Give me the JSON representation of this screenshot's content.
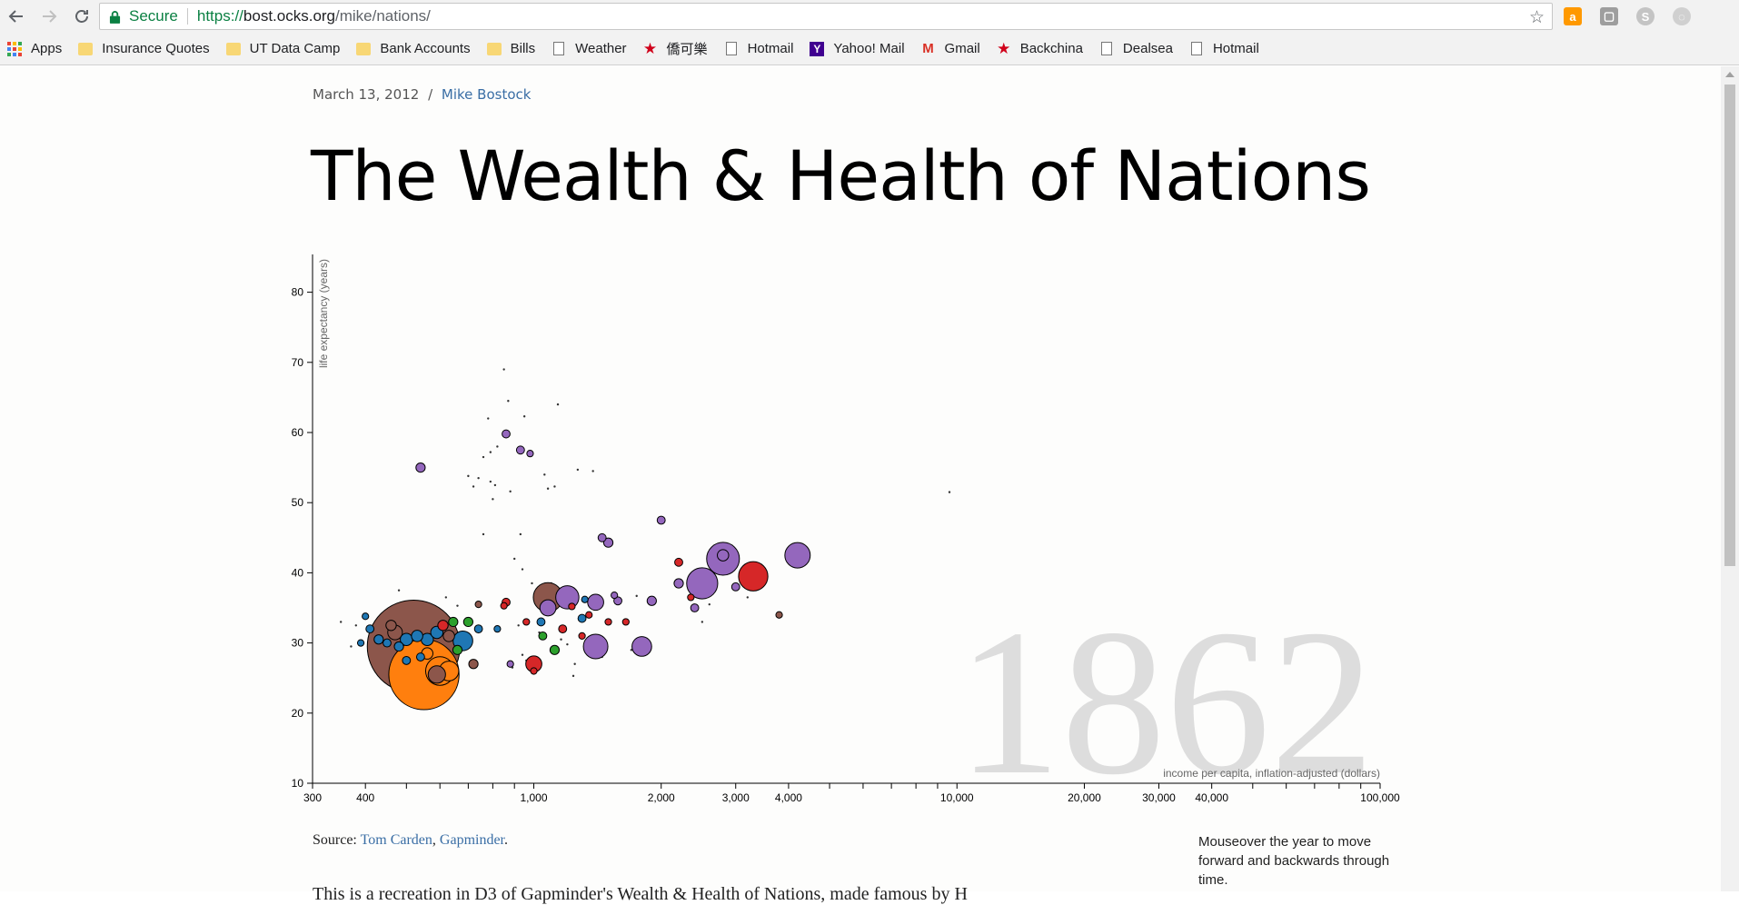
{
  "browser": {
    "secure_label": "Secure",
    "url_scheme": "https://",
    "url_host": "bost.ocks.org",
    "url_path": "/mike/nations/"
  },
  "bookmarks": [
    {
      "label": "Apps",
      "icon": "apps-grid-icon"
    },
    {
      "label": "Insurance Quotes",
      "icon": "folder-icon"
    },
    {
      "label": "UT Data Camp",
      "icon": "folder-icon"
    },
    {
      "label": "Bank Accounts",
      "icon": "folder-icon"
    },
    {
      "label": "Bills",
      "icon": "folder-icon"
    },
    {
      "label": "Weather",
      "icon": "page-icon"
    },
    {
      "label": "僑可樂",
      "icon": "red-star-icon"
    },
    {
      "label": "Hotmail",
      "icon": "page-icon"
    },
    {
      "label": "Yahoo! Mail",
      "icon": "yahoo-icon"
    },
    {
      "label": "Gmail",
      "icon": "gmail-icon"
    },
    {
      "label": "Backchina",
      "icon": "red-star-icon"
    },
    {
      "label": "Dealsea",
      "icon": "page-icon"
    },
    {
      "label": "Hotmail",
      "icon": "page-icon"
    }
  ],
  "article": {
    "date": "March 13, 2012",
    "separator": "/",
    "author": "Mike Bostock",
    "title": "The Wealth & Health of Nations",
    "source_prefix": "Source:",
    "source_link1": "Tom Carden",
    "source_comma": ",",
    "source_link2": "Gapminder",
    "source_end": ".",
    "hint": "Mouseover the year to move forward and backwards through time.",
    "body_text_cut": "This is a recreation in D3 of Gapminder's Wealth & Health of Nations, made famous by H"
  },
  "colors": {
    "sub_saharan_africa": "#1f77b4",
    "south_asia": "#ff7f0e",
    "middle_east_north_africa": "#2ca02c",
    "america": "#d62728",
    "europe_central_asia": "#9467bd",
    "east_asia_pacific": "#8c564b",
    "year_label": "#dddddd",
    "link": "#3a6ea5"
  },
  "chart_data": {
    "type": "scatter",
    "year": "1862",
    "xlabel": "income per capita, inflation-adjusted (dollars)",
    "ylabel": "life expectancy (years)",
    "xscale": "log",
    "xlim": [
      300,
      100000
    ],
    "ylim": [
      10,
      85
    ],
    "xticks": [
      300,
      400,
      1000,
      2000,
      3000,
      4000,
      10000,
      20000,
      30000,
      40000,
      100000
    ],
    "xtick_labels": [
      "300",
      "400",
      "1,000",
      "2,000",
      "3,000",
      "4,000",
      "10,000",
      "20,000",
      "30,000",
      "40,000",
      "100,000"
    ],
    "yticks": [
      10,
      20,
      30,
      40,
      50,
      60,
      70,
      80
    ],
    "legend": "none",
    "points": [
      {
        "x": 520,
        "y": 29.5,
        "pop": 400,
        "region": "east_asia_pacific"
      },
      {
        "x": 550,
        "y": 25.5,
        "pop": 230,
        "region": "south_asia"
      },
      {
        "x": 600,
        "y": 26,
        "pop": 38,
        "region": "south_asia"
      },
      {
        "x": 630,
        "y": 26,
        "pop": 18,
        "region": "south_asia"
      },
      {
        "x": 590,
        "y": 25.5,
        "pop": 14,
        "region": "east_asia_pacific"
      },
      {
        "x": 680,
        "y": 30.3,
        "pop": 18,
        "region": "sub_saharan_africa"
      },
      {
        "x": 1080,
        "y": 36.5,
        "pop": 40,
        "region": "east_asia_pacific"
      },
      {
        "x": 1200,
        "y": 36.5,
        "pop": 25,
        "region": "europe_central_asia"
      },
      {
        "x": 1080,
        "y": 35,
        "pop": 12,
        "region": "europe_central_asia"
      },
      {
        "x": 1400,
        "y": 35.8,
        "pop": 12,
        "region": "europe_central_asia"
      },
      {
        "x": 1400,
        "y": 29.5,
        "pop": 28,
        "region": "europe_central_asia"
      },
      {
        "x": 1800,
        "y": 29.5,
        "pop": 18,
        "region": "europe_central_asia"
      },
      {
        "x": 2500,
        "y": 38.5,
        "pop": 45,
        "region": "europe_central_asia"
      },
      {
        "x": 2800,
        "y": 42,
        "pop": 50,
        "region": "europe_central_asia"
      },
      {
        "x": 3300,
        "y": 39.5,
        "pop": 40,
        "region": "america"
      },
      {
        "x": 4200,
        "y": 42.5,
        "pop": 30,
        "region": "europe_central_asia"
      },
      {
        "x": 2800,
        "y": 42.5,
        "pop": 6,
        "region": "europe_central_asia"
      },
      {
        "x": 1000,
        "y": 27,
        "pop": 12,
        "region": "america"
      },
      {
        "x": 1000,
        "y": 26,
        "pop": 2,
        "region": "america"
      },
      {
        "x": 560,
        "y": 28.5,
        "pop": 6,
        "region": "south_asia"
      },
      {
        "x": 470,
        "y": 31.5,
        "pop": 10,
        "region": "east_asia_pacific"
      },
      {
        "x": 500,
        "y": 30.5,
        "pop": 7,
        "region": "sub_saharan_africa"
      },
      {
        "x": 530,
        "y": 31,
        "pop": 6,
        "region": "sub_saharan_africa"
      },
      {
        "x": 560,
        "y": 30.5,
        "pop": 7,
        "region": "sub_saharan_africa"
      },
      {
        "x": 590,
        "y": 31.5,
        "pop": 7,
        "region": "sub_saharan_africa"
      },
      {
        "x": 610,
        "y": 32.5,
        "pop": 5,
        "region": "america"
      },
      {
        "x": 630,
        "y": 31,
        "pop": 6,
        "region": "east_asia_pacific"
      },
      {
        "x": 645,
        "y": 33,
        "pop": 4,
        "region": "middle_east_north_africa"
      },
      {
        "x": 660,
        "y": 29,
        "pop": 4,
        "region": "middle_east_north_africa"
      },
      {
        "x": 430,
        "y": 30.5,
        "pop": 4,
        "region": "sub_saharan_africa"
      },
      {
        "x": 410,
        "y": 32,
        "pop": 3,
        "region": "sub_saharan_africa"
      },
      {
        "x": 400,
        "y": 33.8,
        "pop": 2,
        "region": "sub_saharan_africa"
      },
      {
        "x": 390,
        "y": 30,
        "pop": 2,
        "region": "sub_saharan_africa"
      },
      {
        "x": 460,
        "y": 32.5,
        "pop": 5,
        "region": "east_asia_pacific"
      },
      {
        "x": 480,
        "y": 29.5,
        "pop": 4,
        "region": "sub_saharan_africa"
      },
      {
        "x": 450,
        "y": 30,
        "pop": 3,
        "region": "sub_saharan_africa"
      },
      {
        "x": 500,
        "y": 27.5,
        "pop": 3,
        "region": "sub_saharan_africa"
      },
      {
        "x": 540,
        "y": 28,
        "pop": 3,
        "region": "sub_saharan_africa"
      },
      {
        "x": 720,
        "y": 27,
        "pop": 4,
        "region": "east_asia_pacific"
      },
      {
        "x": 700,
        "y": 33,
        "pop": 4,
        "region": "middle_east_north_africa"
      },
      {
        "x": 740,
        "y": 32,
        "pop": 3,
        "region": "sub_saharan_africa"
      },
      {
        "x": 860,
        "y": 35.8,
        "pop": 3,
        "region": "america"
      },
      {
        "x": 960,
        "y": 33,
        "pop": 2,
        "region": "america"
      },
      {
        "x": 1040,
        "y": 33,
        "pop": 3,
        "region": "sub_saharan_africa"
      },
      {
        "x": 1050,
        "y": 31,
        "pop": 3,
        "region": "middle_east_north_africa"
      },
      {
        "x": 1120,
        "y": 29,
        "pop": 4,
        "region": "middle_east_north_africa"
      },
      {
        "x": 1170,
        "y": 32,
        "pop": 3,
        "region": "america"
      },
      {
        "x": 1300,
        "y": 31,
        "pop": 2,
        "region": "america"
      },
      {
        "x": 1300,
        "y": 33.5,
        "pop": 3,
        "region": "sub_saharan_africa"
      },
      {
        "x": 1350,
        "y": 34,
        "pop": 2,
        "region": "america"
      },
      {
        "x": 1500,
        "y": 33,
        "pop": 2,
        "region": "america"
      },
      {
        "x": 1580,
        "y": 36,
        "pop": 3,
        "region": "europe_central_asia"
      },
      {
        "x": 1650,
        "y": 33,
        "pop": 2,
        "region": "america"
      },
      {
        "x": 1550,
        "y": 36.8,
        "pop": 2,
        "region": "europe_central_asia"
      },
      {
        "x": 1900,
        "y": 36,
        "pop": 4,
        "region": "europe_central_asia"
      },
      {
        "x": 2200,
        "y": 38.5,
        "pop": 4,
        "region": "europe_central_asia"
      },
      {
        "x": 2200,
        "y": 41.5,
        "pop": 3,
        "region": "america"
      },
      {
        "x": 2400,
        "y": 35,
        "pop": 3,
        "region": "europe_central_asia"
      },
      {
        "x": 2350,
        "y": 36.5,
        "pop": 2,
        "region": "america"
      },
      {
        "x": 3000,
        "y": 38,
        "pop": 3,
        "region": "europe_central_asia"
      },
      {
        "x": 3800,
        "y": 34,
        "pop": 2,
        "region": "east_asia_pacific"
      },
      {
        "x": 1450,
        "y": 45,
        "pop": 3,
        "region": "europe_central_asia"
      },
      {
        "x": 1500,
        "y": 44.3,
        "pop": 4,
        "region": "europe_central_asia"
      },
      {
        "x": 2000,
        "y": 47.5,
        "pop": 3,
        "region": "europe_central_asia"
      },
      {
        "x": 540,
        "y": 55,
        "pop": 4,
        "region": "europe_central_asia"
      },
      {
        "x": 860,
        "y": 59.8,
        "pop": 3,
        "region": "europe_central_asia"
      },
      {
        "x": 930,
        "y": 57.5,
        "pop": 3,
        "region": "europe_central_asia"
      },
      {
        "x": 980,
        "y": 57,
        "pop": 2,
        "region": "europe_central_asia"
      },
      {
        "x": 850,
        "y": 35.3,
        "pop": 2,
        "region": "america"
      },
      {
        "x": 820,
        "y": 32,
        "pop": 2,
        "region": "sub_saharan_africa"
      },
      {
        "x": 880,
        "y": 27,
        "pop": 2,
        "region": "europe_central_asia"
      },
      {
        "x": 740,
        "y": 35.5,
        "pop": 2,
        "region": "east_asia_pacific"
      },
      {
        "x": 1230,
        "y": 35.2,
        "pop": 2,
        "region": "america"
      },
      {
        "x": 1320,
        "y": 36.2,
        "pop": 2,
        "region": "sub_saharan_africa"
      }
    ],
    "small_points": [
      [
        850,
        69
      ],
      [
        780,
        62
      ],
      [
        870,
        64.5
      ],
      [
        950,
        62.3
      ],
      [
        1140,
        64
      ],
      [
        820,
        58
      ],
      [
        790,
        57.2
      ],
      [
        760,
        56.5
      ],
      [
        700,
        53.8
      ],
      [
        720,
        52.3
      ],
      [
        740,
        53.5
      ],
      [
        790,
        53
      ],
      [
        810,
        52.5
      ],
      [
        880,
        51.6
      ],
      [
        1060,
        54
      ],
      [
        1080,
        52
      ],
      [
        1120,
        52.3
      ],
      [
        1270,
        54.7
      ],
      [
        1380,
        54.5
      ],
      [
        800,
        50.5
      ],
      [
        930,
        45.5
      ],
      [
        760,
        45.5
      ],
      [
        900,
        42
      ],
      [
        940,
        40.5
      ],
      [
        990,
        38.5
      ],
      [
        1100,
        38.5
      ],
      [
        1050,
        37.3
      ],
      [
        480,
        37.5
      ],
      [
        620,
        36.5
      ],
      [
        660,
        35.3
      ],
      [
        570,
        35.3
      ],
      [
        920,
        32.5
      ],
      [
        1030,
        31.5
      ],
      [
        1160,
        30.5
      ],
      [
        1200,
        29.8
      ],
      [
        1250,
        27
      ],
      [
        1240,
        25.3
      ],
      [
        1000,
        25.8
      ],
      [
        960,
        27.5
      ],
      [
        890,
        26.5
      ],
      [
        940,
        28.3
      ],
      [
        350,
        33
      ],
      [
        380,
        32.5
      ],
      [
        420,
        31
      ],
      [
        440,
        29.5
      ],
      [
        370,
        29.5
      ],
      [
        410,
        28.5
      ],
      [
        1700,
        29
      ],
      [
        1450,
        28
      ],
      [
        2500,
        33
      ],
      [
        2600,
        35.5
      ],
      [
        3200,
        36.5
      ],
      [
        2450,
        37.8
      ],
      [
        1750,
        36.7
      ],
      [
        9600,
        51.5
      ]
    ]
  }
}
